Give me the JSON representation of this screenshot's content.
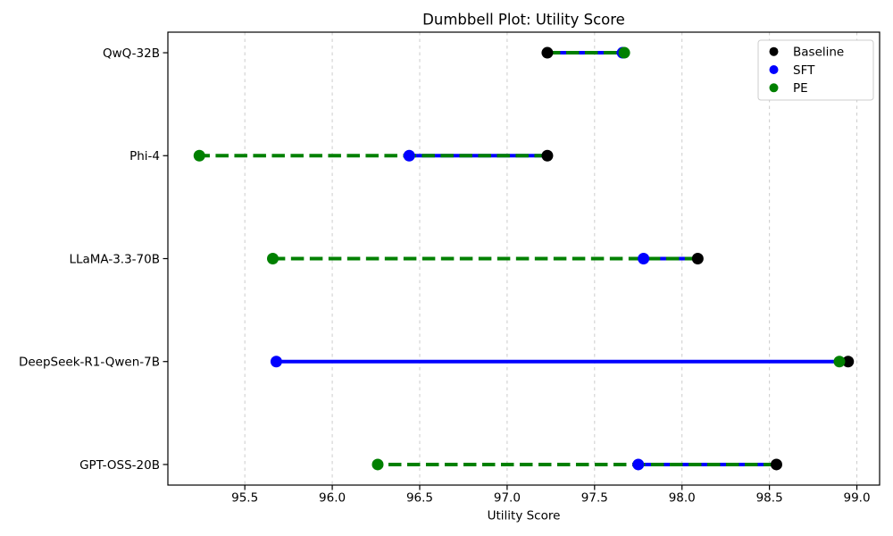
{
  "chart_data": {
    "type": "dumbbell",
    "title": "Dumbbell Plot: Utility Score",
    "xlabel": "Utility Score",
    "ylabel": "",
    "categories": [
      "GPT-OSS-20B",
      "DeepSeek-R1-Qwen-7B",
      "LLaMA-3.3-70B",
      "Phi-4",
      "QwQ-32B"
    ],
    "series": [
      {
        "name": "Baseline",
        "color": "#000000",
        "marker": "dot",
        "connector": "none",
        "values": [
          98.54,
          98.95,
          98.09,
          97.23,
          97.23
        ]
      },
      {
        "name": "SFT",
        "color": "#0000ff",
        "marker": "dot",
        "connector": "solid-from-baseline",
        "values": [
          97.75,
          95.68,
          97.78,
          96.44,
          97.66
        ]
      },
      {
        "name": "PE",
        "color": "#008000",
        "marker": "dot",
        "connector": "dashed-from-baseline",
        "values": [
          96.26,
          98.9,
          95.66,
          95.24,
          97.67
        ]
      }
    ],
    "x_ticks": [
      95.5,
      96.0,
      96.5,
      97.0,
      97.5,
      98.0,
      98.5,
      99.0
    ],
    "x_tick_labels": [
      "95.5",
      "96.0",
      "96.5",
      "97.0",
      "97.5",
      "98.0",
      "98.5",
      "99.0"
    ],
    "xlim": [
      95.06,
      99.13
    ],
    "ylim_padding": 0.2,
    "grid": {
      "axis": "x",
      "style": "dashed",
      "color": "#cccccc"
    },
    "legend": {
      "position": "upper-right",
      "entries": [
        "Baseline",
        "SFT",
        "PE"
      ]
    },
    "colors": {
      "background": "#ffffff",
      "spine": "#000000",
      "tick": "#000000"
    }
  }
}
